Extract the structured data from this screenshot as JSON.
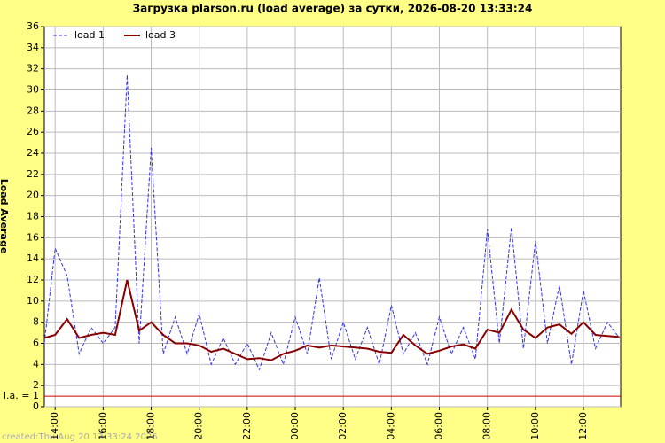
{
  "chart_data": {
    "type": "line",
    "title": "Загрузка plarson.ru (load average) за сутки, 2026-08-20 13:33:24",
    "y_label": "Load Average",
    "footer": "created:Thu Aug 20 13:33:24 2026",
    "x": [
      "13:33",
      "14:00",
      "14:30",
      "15:00",
      "15:30",
      "16:00",
      "16:30",
      "17:00",
      "17:30",
      "18:00",
      "18:30",
      "19:00",
      "19:30",
      "20:00",
      "20:30",
      "21:00",
      "21:30",
      "22:00",
      "22:30",
      "23:00",
      "23:30",
      "00:00",
      "00:30",
      "01:00",
      "01:30",
      "02:00",
      "02:30",
      "03:00",
      "03:30",
      "04:00",
      "04:30",
      "05:00",
      "05:30",
      "06:00",
      "06:30",
      "07:00",
      "07:30",
      "08:00",
      "08:30",
      "09:00",
      "09:30",
      "10:00",
      "10:30",
      "11:00",
      "11:30",
      "12:00",
      "12:30",
      "13:00",
      "13:30"
    ],
    "series": [
      {
        "name": "load 1",
        "color": "#3333ee",
        "dash": true,
        "values": [
          6.0,
          15,
          12.4,
          5.0,
          7.5,
          6.0,
          7.5,
          31.4,
          6.0,
          24.5,
          5.0,
          8.5,
          5.0,
          8.8,
          4.0,
          6.5,
          4.0,
          6.0,
          3.5,
          7.0,
          4.0,
          8.5,
          5.0,
          12.2,
          4.5,
          8.0,
          4.5,
          7.5,
          4.0,
          9.6,
          5.0,
          7.0,
          4.0,
          8.5,
          5.0,
          7.5,
          4.5,
          16.8,
          6.0,
          17.0,
          5.5,
          15.7,
          6.0,
          11.5,
          4.0,
          11.0,
          5.5,
          8.0,
          6.5
        ]
      },
      {
        "name": "load 3",
        "color": "#880000",
        "dash": false,
        "values": [
          6.5,
          6.8,
          8.3,
          6.5,
          6.8,
          7.0,
          6.8,
          12.0,
          7.2,
          8.0,
          6.8,
          6.0,
          6.0,
          5.8,
          5.2,
          5.5,
          5.0,
          4.5,
          4.6,
          4.4,
          5.0,
          5.3,
          5.8,
          5.6,
          5.8,
          5.7,
          5.6,
          5.5,
          5.2,
          5.1,
          6.8,
          5.8,
          5.0,
          5.3,
          5.7,
          5.9,
          5.5,
          7.3,
          7.0,
          9.2,
          7.3,
          6.5,
          7.5,
          7.8,
          6.9,
          8.0,
          6.8,
          6.7,
          6.6
        ]
      }
    ],
    "xlim": [
      "13:33",
      "13:33"
    ],
    "xticks": [
      "14:00",
      "16:00",
      "18:00",
      "20:00",
      "22:00",
      "00:00",
      "02:00",
      "04:00",
      "06:00",
      "08:00",
      "10:00",
      "12:00"
    ],
    "ylim": [
      0,
      36
    ],
    "yticks": [
      0,
      2,
      4,
      6,
      8,
      10,
      12,
      14,
      16,
      18,
      20,
      22,
      24,
      26,
      28,
      30,
      32,
      34,
      36
    ],
    "threshold": {
      "value": 1,
      "label": "l.a. = 1",
      "color": "#cc0000"
    },
    "grid": true,
    "legend": "top-left"
  }
}
